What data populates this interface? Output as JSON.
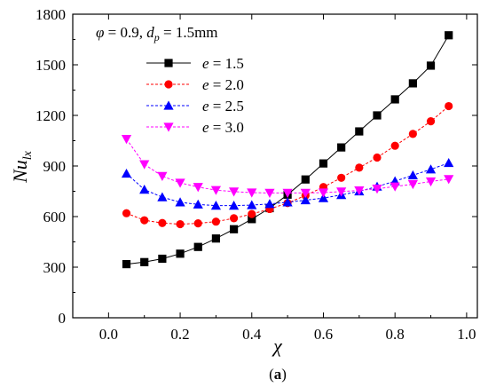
{
  "chart_data": {
    "type": "line",
    "xlabel": "χ",
    "ylabel": {
      "main": "Nu",
      "sub": "lx"
    },
    "xlim": [
      -0.1,
      1.03
    ],
    "ylim": [
      0,
      1800
    ],
    "xticks": [
      "0.0",
      "0.2",
      "0.4",
      "0.6",
      "0.8",
      "1.0"
    ],
    "yticks": [
      "0",
      "300",
      "600",
      "900",
      "1200",
      "1500",
      "1800"
    ],
    "annotation": {
      "phi": "φ",
      "phi_val": " = 0.9, ",
      "d": "d",
      "d_sub": "p",
      "d_val": " = 1.5mm"
    },
    "legend_position": "top-left",
    "panel_label": {
      "open": "(",
      "letter": "a",
      "close": ")"
    },
    "x": [
      0.05,
      0.1,
      0.15,
      0.2,
      0.25,
      0.3,
      0.35,
      0.4,
      0.45,
      0.5,
      0.55,
      0.6,
      0.65,
      0.7,
      0.75,
      0.8,
      0.85,
      0.9,
      0.95
    ],
    "series": [
      {
        "name": "e = 1.5",
        "var": "e",
        "val": " = 1.5",
        "color": "#000000",
        "marker": "square",
        "dash": "solid",
        "values": [
          318,
          330,
          350,
          380,
          420,
          470,
          525,
          585,
          650,
          730,
          820,
          915,
          1010,
          1105,
          1200,
          1295,
          1390,
          1495,
          1675
        ]
      },
      {
        "name": "e = 2.0",
        "var": "e",
        "val": " = 2.0",
        "color": "#ff0000",
        "marker": "circle",
        "dash": "dashed",
        "values": [
          620,
          578,
          562,
          555,
          560,
          570,
          590,
          615,
          645,
          680,
          725,
          775,
          830,
          890,
          950,
          1020,
          1090,
          1165,
          1255
        ]
      },
      {
        "name": "e = 2.5",
        "var": "e",
        "val": " = 2.5",
        "color": "#0000ff",
        "marker": "triangle-up",
        "dash": "dashed",
        "values": [
          855,
          760,
          715,
          685,
          672,
          665,
          665,
          668,
          675,
          685,
          697,
          710,
          728,
          750,
          778,
          810,
          845,
          880,
          918
        ]
      },
      {
        "name": "e = 3.0",
        "var": "e",
        "val": " = 3.0",
        "color": "#ff00ff",
        "marker": "triangle-down",
        "dash": "dashed",
        "values": [
          1060,
          910,
          840,
          800,
          775,
          757,
          748,
          742,
          740,
          740,
          740,
          742,
          748,
          755,
          765,
          778,
          792,
          808,
          822
        ]
      }
    ]
  }
}
